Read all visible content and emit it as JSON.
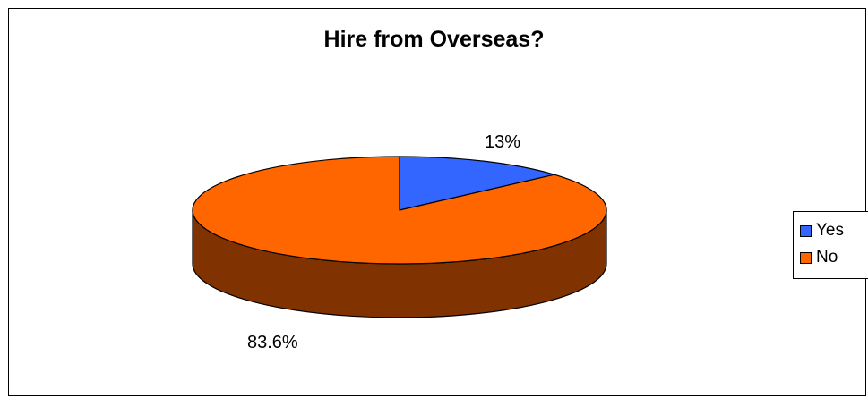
{
  "chart_data": {
    "type": "pie",
    "title": "Hire from Overseas?",
    "categories": [
      "Yes",
      "No"
    ],
    "values": [
      13,
      83.6
    ],
    "data_labels": [
      "13%",
      "83.6%"
    ],
    "colors": {
      "Yes": "#3366ff",
      "No": "#ff6600",
      "Yes_side": "#1f3d99",
      "No_side": "#803300"
    },
    "legend": {
      "placement": "right",
      "entries": [
        "Yes",
        "No"
      ]
    },
    "style": "3d"
  }
}
